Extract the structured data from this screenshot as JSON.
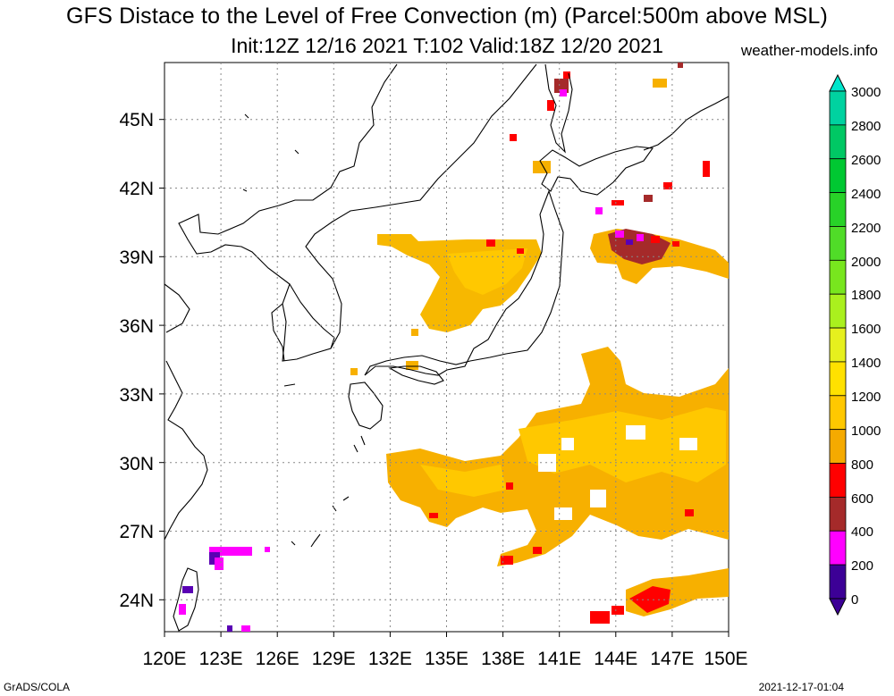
{
  "title": {
    "line1": "GFS Distace to the Level of Free Convection (m) (Parcel:500m above MSL)",
    "line2": "Init:12Z 12/16 2021 T:102 Valid:18Z 12/20 2021",
    "site": "weather-models.info"
  },
  "footer": {
    "left": "GrADS/COLA",
    "right": "2021-12-17-01:04"
  },
  "map": {
    "lat_labels": [
      "45N",
      "42N",
      "39N",
      "36N",
      "33N",
      "30N",
      "27N",
      "24N"
    ],
    "lon_labels": [
      "120E",
      "123E",
      "126E",
      "129E",
      "132E",
      "135E",
      "138E",
      "141E",
      "144E",
      "147E",
      "150E"
    ]
  },
  "colorbar": {
    "labels": [
      "3000",
      "2800",
      "2600",
      "2400",
      "2200",
      "2000",
      "1800",
      "1600",
      "1400",
      "1200",
      "1000",
      "800",
      "600",
      "400",
      "200",
      "0"
    ],
    "colors": [
      "#00e6cc",
      "#00d2a0",
      "#00c864",
      "#00c832",
      "#28d228",
      "#50dc28",
      "#78e61e",
      "#aaf01e",
      "#e6f01e",
      "#ffe100",
      "#ffc800",
      "#f5aa00",
      "#ff0000",
      "#a52a2a",
      "#ff00ff",
      "#3c0096"
    ]
  },
  "colors": {
    "orange": "#f5b000",
    "yellow": "#ffc800",
    "red": "#ff0000",
    "brown": "#a52a2a",
    "magenta": "#ff00ff",
    "purple": "#5a00b4"
  }
}
